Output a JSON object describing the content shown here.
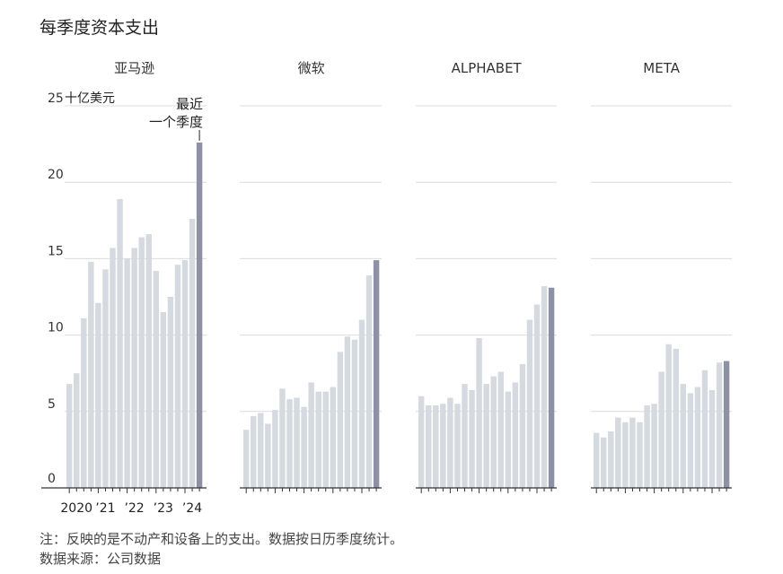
{
  "title": "每季度资本支出",
  "note": "注：反映的是不动产和设备上的支出。数据按日历季度统计。",
  "source": "数据来源：公司数据",
  "chart_data": {
    "type": "bar",
    "ylim": [
      0,
      25
    ],
    "yticks": [
      0,
      5,
      10,
      15,
      20,
      25
    ],
    "y_unit_label": "十亿美元",
    "grid": true,
    "annotation": "最近\n一个季度",
    "quarters": [
      "2020 Q1",
      "2020 Q2",
      "2020 Q3",
      "2020 Q4",
      "2021 Q1",
      "2021 Q2",
      "2021 Q3",
      "2021 Q4",
      "2022 Q1",
      "2022 Q2",
      "2022 Q3",
      "2022 Q4",
      "2023 Q1",
      "2023 Q2",
      "2023 Q3",
      "2023 Q4",
      "2024 Q1",
      "2024 Q2",
      "2024 Q3"
    ],
    "x_tick_labels": [
      {
        "label": "2020",
        "index": 0
      },
      {
        "label": "’21",
        "index": 4
      },
      {
        "label": "’22",
        "index": 8
      },
      {
        "label": "’23",
        "index": 12
      },
      {
        "label": "’24",
        "index": 16
      }
    ],
    "series": [
      {
        "name": "亚马逊",
        "values": [
          6.8,
          7.5,
          11.1,
          14.8,
          12.1,
          14.3,
          15.7,
          18.9,
          15.0,
          15.7,
          16.4,
          16.6,
          14.2,
          11.5,
          12.5,
          14.6,
          14.9,
          17.6,
          22.6
        ]
      },
      {
        "name": "微软",
        "values": [
          3.8,
          4.7,
          4.9,
          4.2,
          5.1,
          6.5,
          5.8,
          5.9,
          5.3,
          6.9,
          6.3,
          6.3,
          6.6,
          8.9,
          9.9,
          9.7,
          11.0,
          13.9,
          14.9
        ]
      },
      {
        "name": "ALPHABET",
        "values": [
          6.0,
          5.4,
          5.4,
          5.5,
          5.9,
          5.5,
          6.8,
          6.4,
          9.8,
          6.8,
          7.3,
          7.6,
          6.3,
          6.9,
          8.1,
          11.0,
          12.0,
          13.2,
          13.1
        ]
      },
      {
        "name": "META",
        "values": [
          3.6,
          3.3,
          3.7,
          4.6,
          4.3,
          4.6,
          4.3,
          5.4,
          5.5,
          7.6,
          9.4,
          9.1,
          6.8,
          6.2,
          6.6,
          7.7,
          6.4,
          8.2,
          8.3
        ]
      }
    ],
    "colors": {
      "bar": "#d5d9e0",
      "latest": "#8d91a3",
      "grid": "#dcdcdc",
      "axis": "#333333"
    }
  }
}
